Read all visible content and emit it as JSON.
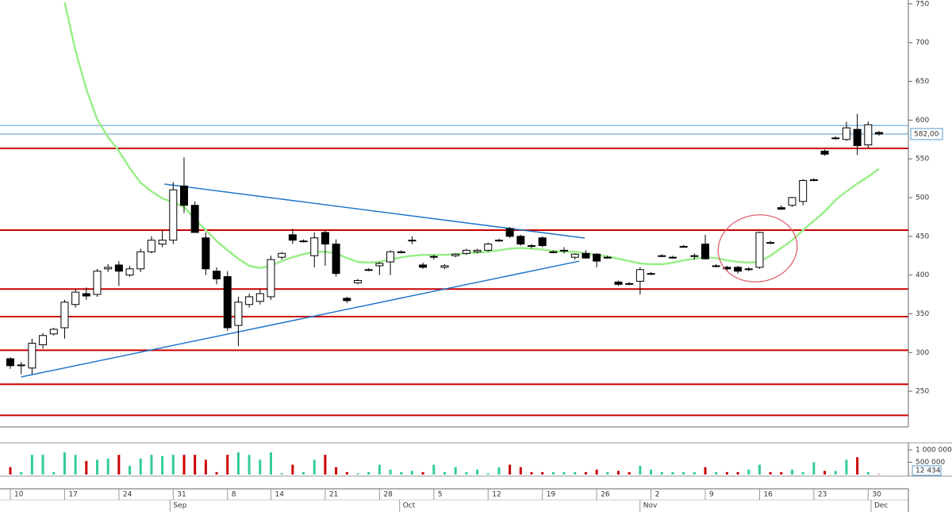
{
  "chart_data": {
    "type": "candlestick",
    "categories": [
      "10",
      null,
      null,
      null,
      null,
      "17",
      null,
      null,
      null,
      null,
      "24",
      null,
      null,
      null,
      null,
      "31",
      null,
      null,
      null,
      null,
      "8",
      null,
      null,
      null,
      "14",
      null,
      null,
      null,
      null,
      "21",
      null,
      null,
      null,
      null,
      "28",
      null,
      null,
      null,
      null,
      "5",
      null,
      null,
      null,
      null,
      "12",
      null,
      null,
      null,
      null,
      "19",
      null,
      null,
      null,
      null,
      "26",
      null,
      null,
      null,
      null,
      "2",
      null,
      null,
      null,
      null,
      "9",
      null,
      null,
      null,
      null,
      "16",
      null,
      null,
      null,
      null,
      "23",
      null,
      null,
      null,
      null,
      "30",
      null
    ],
    "months": [
      "Sep",
      "Oct",
      "Nov",
      "Dec"
    ],
    "open": [
      292,
      284,
      280,
      310,
      324,
      332,
      362,
      376,
      375,
      408,
      413,
      400,
      408,
      430,
      440,
      445,
      515,
      490,
      448,
      405,
      398,
      335,
      362,
      366,
      372,
      423,
      452,
      444,
      425,
      455,
      440,
      370,
      390,
      407,
      412,
      417,
      430,
      445,
      413,
      423,
      410,
      425,
      428,
      430,
      432,
      445,
      460,
      450,
      438,
      448,
      430,
      432,
      423,
      428,
      427,
      423,
      391,
      389,
      392,
      402,
      425,
      423,
      437,
      424,
      440,
      412,
      410,
      410,
      408,
      410,
      442,
      487,
      490,
      495,
      523,
      560,
      577,
      575,
      588,
      568,
      584
    ],
    "high": [
      294,
      288,
      318,
      325,
      332,
      368,
      382,
      384,
      408,
      414,
      418,
      412,
      434,
      450,
      458,
      520,
      552,
      495,
      455,
      410,
      405,
      372,
      376,
      382,
      425,
      430,
      460,
      446,
      455,
      458,
      446,
      372,
      395,
      409,
      417,
      432,
      432,
      450,
      416,
      426,
      414,
      428,
      434,
      434,
      442,
      447,
      462,
      452,
      440,
      450,
      432,
      436,
      428,
      432,
      428,
      425,
      393,
      391,
      410,
      404,
      427,
      425,
      439,
      428,
      452,
      414,
      412,
      412,
      410,
      456,
      444,
      490,
      501,
      524,
      525,
      562,
      579,
      598,
      608,
      598,
      586
    ],
    "low": [
      279,
      272,
      272,
      305,
      322,
      318,
      358,
      368,
      372,
      404,
      386,
      398,
      404,
      428,
      436,
      440,
      480,
      455,
      400,
      388,
      328,
      308,
      358,
      362,
      368,
      420,
      440,
      442,
      410,
      412,
      398,
      364,
      388,
      405,
      400,
      400,
      428,
      440,
      408,
      420,
      408,
      423,
      426,
      428,
      430,
      443,
      448,
      438,
      434,
      436,
      428,
      428,
      420,
      421,
      410,
      421,
      386,
      387,
      375,
      400,
      423,
      421,
      435,
      420,
      420,
      410,
      405,
      402,
      405,
      408,
      440,
      484,
      488,
      490,
      521,
      554,
      575,
      573,
      555,
      564,
      580
    ],
    "close": [
      283,
      284,
      312,
      322,
      330,
      365,
      378,
      373,
      405,
      410,
      405,
      408,
      430,
      445,
      445,
      510,
      490,
      455,
      408,
      395,
      332,
      365,
      372,
      376,
      420,
      428,
      445,
      444,
      448,
      440,
      402,
      367,
      393,
      407,
      415,
      430,
      430,
      445,
      410,
      424,
      412,
      427,
      432,
      432,
      440,
      445,
      450,
      440,
      437,
      438,
      430,
      432,
      427,
      422,
      418,
      423,
      388,
      388,
      407,
      402,
      425,
      423,
      437,
      425,
      421,
      412,
      408,
      405,
      408,
      455,
      441,
      485,
      500,
      522,
      523,
      556,
      577,
      590,
      567,
      594,
      582
    ],
    "close_label": "582,00",
    "up_color": "#33cc99",
    "down_color": "#cc0000",
    "volume": [
      300000,
      100000,
      800000,
      800000,
      100000,
      900000,
      800000,
      550000,
      600000,
      650000,
      800000,
      350000,
      650000,
      800000,
      750000,
      800000,
      800000,
      800000,
      600000,
      100000,
      800000,
      900000,
      800000,
      600000,
      900000,
      50000,
      400000,
      100000,
      600000,
      800000,
      300000,
      100000,
      50000,
      100000,
      400000,
      200000,
      100000,
      150000,
      100000,
      400000,
      100000,
      300000,
      100000,
      200000,
      50000,
      300000,
      400000,
      300000,
      100000,
      100000,
      100000,
      100000,
      100000,
      100000,
      200000,
      100000,
      150000,
      100000,
      350000,
      200000,
      100000,
      100000,
      100000,
      100000,
      300000,
      100000,
      100000,
      100000,
      200000,
      400000,
      100000,
      100000,
      200000,
      100000,
      500000,
      150000,
      150000,
      600000,
      700000,
      100000,
      12434
    ],
    "volume_label": "12 434",
    "ylim": [
      204,
      755
    ],
    "yticks": [
      250,
      300,
      350,
      400,
      450,
      500,
      550,
      600,
      650,
      700,
      750
    ],
    "vlim": [
      0,
      1160000
    ],
    "vticks": [
      {
        "value": 1000000,
        "label": "1 000 000"
      },
      {
        "value": 500000,
        "label": "500 000"
      }
    ],
    "ma": {
      "color": "#99ee88",
      "values": [
        null,
        null,
        null,
        null,
        null,
        752,
        690,
        640,
        601,
        578,
        560,
        538,
        519,
        508,
        499,
        494,
        488,
        472,
        458,
        444,
        432,
        421,
        412,
        409,
        412,
        418,
        423,
        427,
        430,
        430,
        428,
        422,
        417,
        416,
        417,
        420,
        423,
        425,
        426,
        426,
        426,
        427,
        428,
        429,
        430,
        432,
        434,
        435,
        434,
        433,
        431,
        430,
        430,
        428,
        426,
        424,
        421,
        418,
        415,
        414,
        414,
        416,
        419,
        421,
        423,
        422,
        419,
        417,
        416,
        417,
        425,
        435,
        445,
        458,
        470,
        482,
        497,
        508,
        518,
        527,
        537
      ]
    },
    "levels": [
      {
        "value": 593,
        "color": "#5599cc"
      },
      {
        "value": 563.5,
        "color": "#cc0000"
      },
      {
        "value": 458,
        "color": "#cc0000"
      },
      {
        "value": 382,
        "color": "#cc0000"
      },
      {
        "value": 346.3,
        "color": "#cc0000"
      },
      {
        "value": 303,
        "color": "#cc0000"
      },
      {
        "value": 259,
        "color": "#cc0000"
      },
      {
        "value": 219,
        "color": "#cc0000"
      }
    ],
    "trendlines": [
      {
        "x": [
          1,
          52.4
        ],
        "values": [
          268.5,
          418
        ],
        "color": "#2277cc"
      },
      {
        "x": [
          14.2,
          52.9
        ],
        "values": [
          517.4,
          447.7
        ],
        "color": "#2277cc"
      }
    ]
  }
}
